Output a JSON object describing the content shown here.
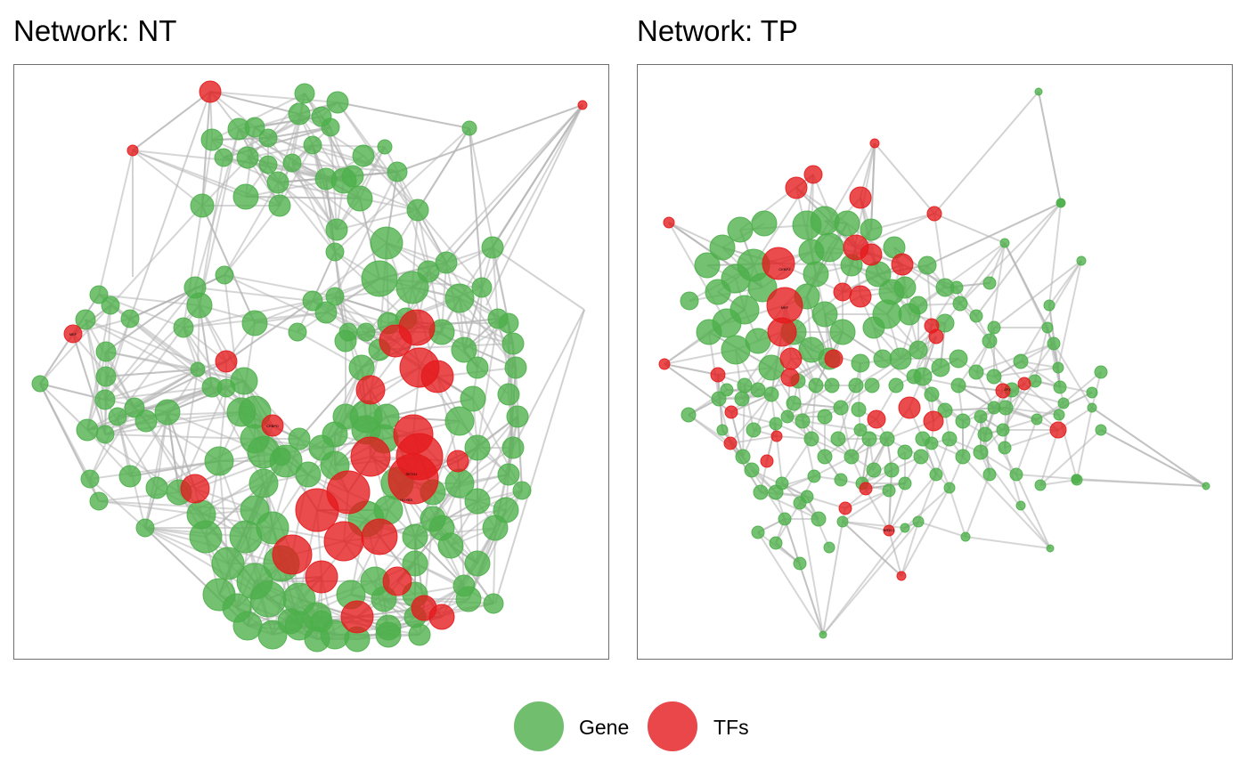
{
  "panels": [
    {
      "id": "nt",
      "title": "Network: NT",
      "node_labels": [
        "MEF",
        "CEBPD",
        "SETD1",
        "HOXB3"
      ]
    },
    {
      "id": "tp",
      "title": "Network: TP",
      "node_labels": [
        "CEBPZ",
        "MEF",
        "ZFX",
        "NR3C1"
      ]
    }
  ],
  "legend": {
    "items": [
      {
        "label": "Gene",
        "color": "#4daf4a"
      },
      {
        "label": "TFs",
        "color": "#e41a1c"
      }
    ]
  },
  "colors": {
    "gene": "#4daf4a",
    "tf": "#e41a1c",
    "edge": "#b4b4b4",
    "border": "#6e6e6e"
  }
}
